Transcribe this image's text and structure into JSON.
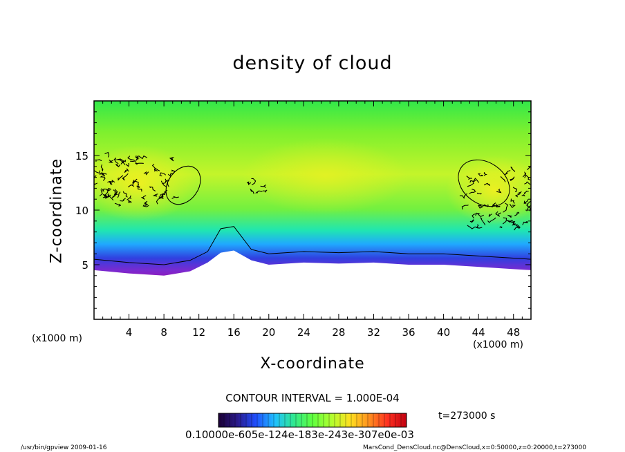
{
  "chart_data": {
    "type": "heatmap",
    "title": "density of cloud",
    "xlabel": "X-coordinate",
    "ylabel": "Z-coordinate",
    "x_unit": "(x1000 m)",
    "xlim": [
      0,
      50
    ],
    "ylim": [
      0,
      20
    ],
    "x_ticks": [
      "4",
      "8",
      "12",
      "16",
      "20",
      "24",
      "28",
      "32",
      "36",
      "40",
      "44",
      "48"
    ],
    "y_ticks": [
      "5",
      "10",
      "15"
    ],
    "contour_interval_text": "CONTOUR INTERVAL = 1.000E-04",
    "time_label": "t=273000 s",
    "colorbar_ticks_text": "0.10000e-605e-124e-183e-243e-307e0e-03",
    "cloud_base_km": [
      {
        "x": 0,
        "z": 4.5
      },
      {
        "x": 4,
        "z": 4.2
      },
      {
        "x": 8,
        "z": 4.0
      },
      {
        "x": 11,
        "z": 4.4
      },
      {
        "x": 13,
        "z": 5.2
      },
      {
        "x": 14.5,
        "z": 6.1
      },
      {
        "x": 16,
        "z": 6.3
      },
      {
        "x": 18,
        "z": 5.4
      },
      {
        "x": 20,
        "z": 5.0
      },
      {
        "x": 24,
        "z": 5.2
      },
      {
        "x": 28,
        "z": 5.1
      },
      {
        "x": 32,
        "z": 5.2
      },
      {
        "x": 36,
        "z": 5.0
      },
      {
        "x": 40,
        "z": 5.0
      },
      {
        "x": 44,
        "z": 4.8
      },
      {
        "x": 48,
        "z": 4.6
      },
      {
        "x": 50,
        "z": 4.5
      }
    ],
    "colorbar_colors": [
      "#1a0033",
      "#2a1a8a",
      "#2050ff",
      "#20c0ff",
      "#30e890",
      "#60ff40",
      "#b0ff30",
      "#ffe020",
      "#ff9020",
      "#ff3020",
      "#c00010"
    ]
  },
  "footer": {
    "left": "/usr/bin/gpview   2009-01-16",
    "right": "MarsCond_DensCloud.nc@DensCloud,x=0:50000,z=0:20000,t=273000"
  }
}
